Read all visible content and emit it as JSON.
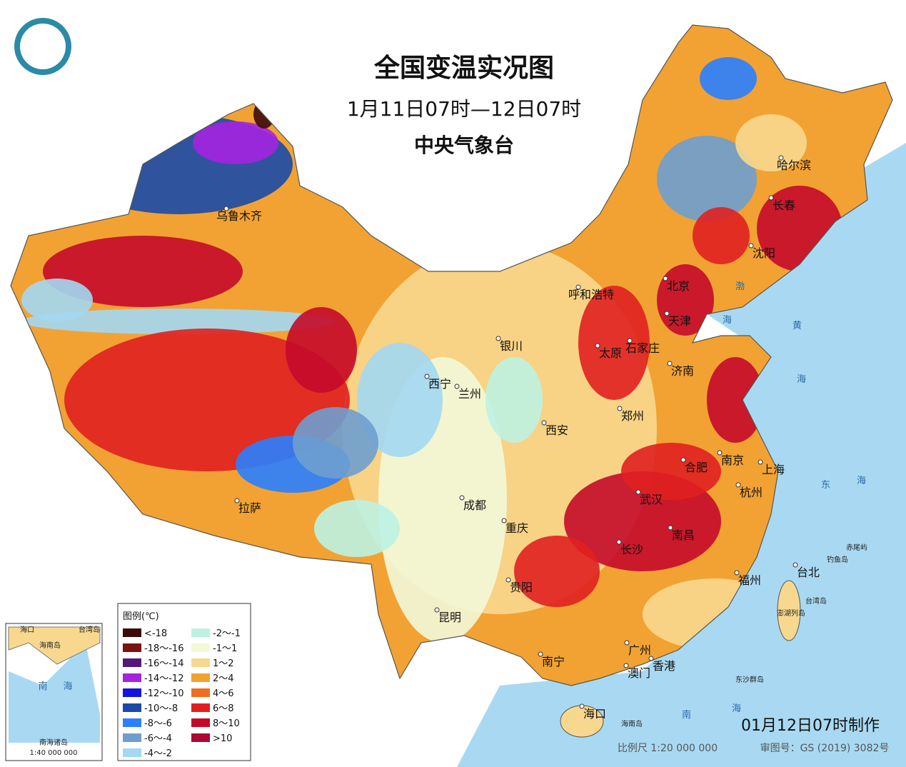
{
  "header": {
    "title": "全国变温实况图",
    "period": "1月11日07时—12日07时",
    "agency": "中央气象台"
  },
  "cities": [
    "乌鲁木齐",
    "哈尔滨",
    "长春",
    "沈阳",
    "呼和浩特",
    "北京",
    "天津",
    "银川",
    "太原",
    "石家庄",
    "济南",
    "西宁",
    "兰州",
    "郑州",
    "西安",
    "合肥",
    "南京",
    "上海",
    "成都",
    "武汉",
    "杭州",
    "拉萨",
    "重庆",
    "南昌",
    "长沙",
    "福州",
    "台北",
    "贵阳",
    "昆明",
    "广州",
    "南宁",
    "澳门",
    "香港",
    "海口"
  ],
  "seas": [
    "渤",
    "海",
    "黄",
    "海",
    "东",
    "海",
    "南",
    "海",
    "台湾岛",
    "海南岛",
    "赤尾屿",
    "钓鱼岛",
    "澎湖列岛",
    "东沙群岛"
  ],
  "legend": {
    "title": "图例(℃)",
    "items": [
      {
        "label": "<-18",
        "color": "#3d0a0a"
      },
      {
        "label": "-18～-16",
        "color": "#7a1212"
      },
      {
        "label": "-16～-14",
        "color": "#55187a"
      },
      {
        "label": "-14～-12",
        "color": "#a424e0"
      },
      {
        "label": "-12～-10",
        "color": "#1414e0"
      },
      {
        "label": "-10～-8",
        "color": "#1a4aa8"
      },
      {
        "label": "-8～-6",
        "color": "#2a80ff"
      },
      {
        "label": "-6～-4",
        "color": "#6e9ecf"
      },
      {
        "label": "-4～-2",
        "color": "#a2d8f2"
      },
      {
        "label": "-2～-1",
        "color": "#bdf2e2"
      },
      {
        "label": "-1～1",
        "color": "#f2f8d8"
      },
      {
        "label": "1～2",
        "color": "#f8d88e"
      },
      {
        "label": "2～4",
        "color": "#f2a232"
      },
      {
        "label": "4～6",
        "color": "#ee6e1e"
      },
      {
        "label": "6～8",
        "color": "#e02020"
      },
      {
        "label": "8～10",
        "color": "#c40a2a"
      },
      {
        "label": ">10",
        "color": "#a80a34"
      }
    ]
  },
  "inset": {
    "labels": [
      "海口",
      "海南岛",
      "台湾岛",
      "南",
      "海",
      "南海诸岛"
    ],
    "scale": "1:40 000 000"
  },
  "footer": {
    "made": "01月12日07时制作",
    "scale": "比例尺 1:20 000 000",
    "review": "审图号：GS (2019) 3082号"
  }
}
